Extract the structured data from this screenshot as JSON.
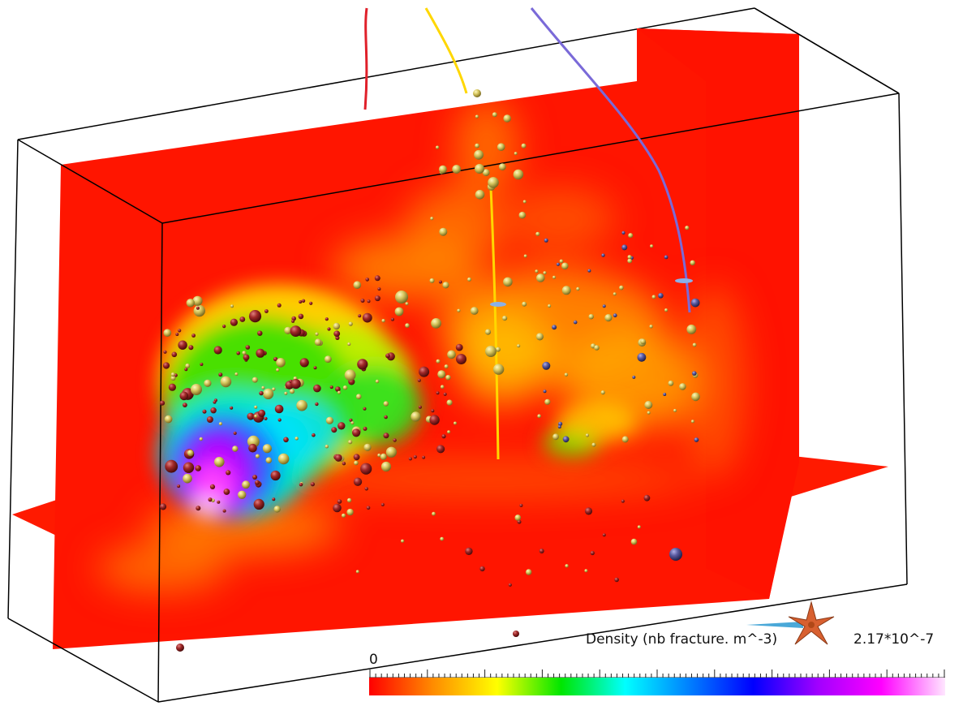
{
  "colorbar": {
    "title": "Density (nb fracture. m^-3)",
    "min_label": "0",
    "max_label": "2.17*10^-7",
    "colormap": [
      "#ff0000",
      "#ff8c00",
      "#ffff00",
      "#00e600",
      "#00ffff",
      "#0080ff",
      "#0000ff",
      "#a000ff",
      "#ff00ff",
      "#ffe6ff"
    ]
  },
  "colors": {
    "background": "#ffffff",
    "frame": "#000000",
    "well_red": "#e0202a",
    "well_yellow": "#ffd700",
    "well_blue": "#7a6ad8",
    "sphere_yellow": "#d8c860",
    "sphere_red": "#a02828",
    "sphere_blue": "#5a5aa0"
  },
  "icons": {
    "orientation": "compass-rose-icon"
  }
}
